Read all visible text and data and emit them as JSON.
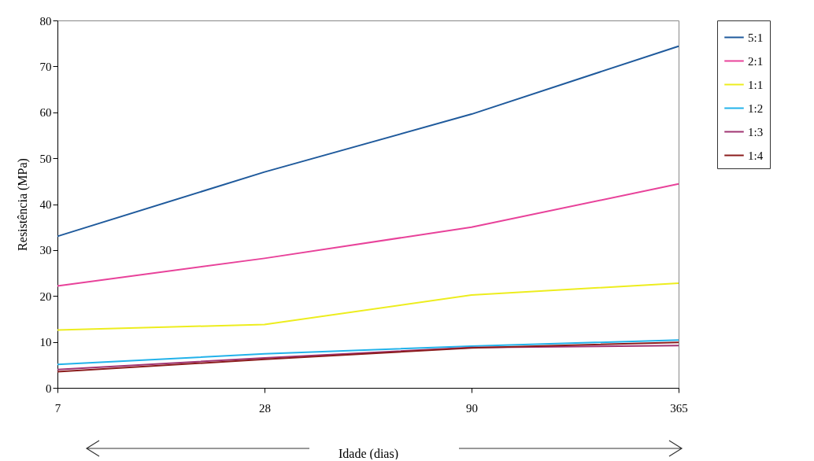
{
  "chart_data": {
    "type": "line",
    "xlabel": "Idade (dias)",
    "ylabel": "Resistência (MPa)",
    "categories": [
      "7",
      "28",
      "90",
      "365"
    ],
    "ylim": [
      0,
      80
    ],
    "yticks": [
      0,
      10,
      20,
      30,
      40,
      50,
      60,
      70,
      80
    ],
    "grid": false,
    "legend": "right",
    "marker": "none",
    "line_style": "solid",
    "series": [
      {
        "name": "5:1",
        "color": "#1f5a9c",
        "values": [
          33,
          47,
          59.6,
          74.4
        ]
      },
      {
        "name": "2:1",
        "color": "#e8429a",
        "values": [
          22.2,
          28.2,
          35,
          44.4
        ]
      },
      {
        "name": "1:1",
        "color": "#eded1e",
        "values": [
          12.6,
          13.8,
          20.2,
          22.8
        ]
      },
      {
        "name": "1:2",
        "color": "#22b2ea",
        "values": [
          5.1,
          7.4,
          9.1,
          10.4
        ]
      },
      {
        "name": "1:3",
        "color": "#a03472",
        "values": [
          4,
          6.5,
          8.8,
          9.2
        ]
      },
      {
        "name": "1:4",
        "color": "#8b1c1c",
        "values": [
          3.5,
          6.2,
          8.7,
          9.9
        ]
      }
    ]
  }
}
